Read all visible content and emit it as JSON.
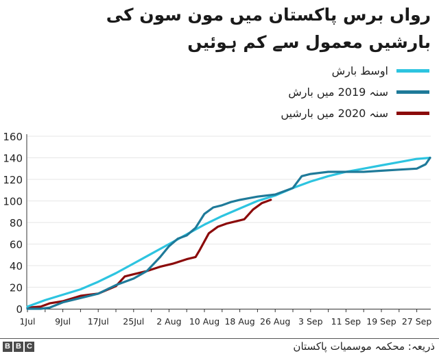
{
  "title": "رواں برس پاکستان میں مون سون کی بارشیں معمول سے کم ہوئیں",
  "legend": [
    {
      "label": "اوسط بارش",
      "color": "#2dc4e0"
    },
    {
      "label": "سنہ 2019 میں بارش",
      "color": "#1f7a99"
    },
    {
      "label": "سنہ 2020 میں بارشیں",
      "color": "#8b0a0a"
    }
  ],
  "footer": {
    "logo_letters": [
      "B",
      "B",
      "C"
    ],
    "source": "ذریعہ: محکمہ موسمیات پاکستان"
  },
  "chart_data": {
    "type": "line",
    "title": "رواں برس پاکستان میں مون سون کی بارشیں معمول سے کم ہوئیں",
    "xlabel": "",
    "ylabel": "",
    "ylim": [
      0,
      160
    ],
    "yticks": [
      0,
      20,
      40,
      60,
      80,
      100,
      120,
      140,
      160
    ],
    "xticks": [
      "1Jul",
      "9Jul",
      "17Jul",
      "25Jul",
      "2 Aug",
      "10 Aug",
      "18 Aug",
      "26 Aug",
      "3 Sep",
      "11 Sep",
      "19 Sep",
      "27 Sep"
    ],
    "xtick_days": [
      0,
      8,
      16,
      24,
      32,
      40,
      48,
      56,
      64,
      72,
      80,
      88
    ],
    "x_unit": "days since 1 Jul",
    "grid": true,
    "legend_position": "top-right",
    "series": [
      {
        "name": "اوسط بارش",
        "color": "#2dc4e0",
        "x": [
          0,
          4,
          8,
          12,
          16,
          20,
          24,
          28,
          32,
          36,
          40,
          44,
          48,
          52,
          56,
          60,
          64,
          68,
          72,
          76,
          80,
          84,
          88,
          91
        ],
        "values": [
          2,
          8,
          13,
          18,
          25,
          33,
          42,
          51,
          60,
          69,
          78,
          86,
          93,
          100,
          105,
          112,
          118,
          123,
          127,
          130,
          133,
          136,
          139,
          140
        ]
      },
      {
        "name": "سنہ 2019 میں بارش",
        "color": "#1f7a99",
        "x": [
          0,
          3,
          5,
          8,
          12,
          16,
          20,
          24,
          27,
          30,
          32,
          34,
          36,
          38,
          40,
          42,
          44,
          46,
          48,
          52,
          56,
          60,
          62,
          64,
          68,
          72,
          76,
          80,
          84,
          88,
          90,
          91
        ],
        "values": [
          0,
          0,
          1,
          6,
          10,
          14,
          22,
          28,
          35,
          48,
          58,
          65,
          68,
          75,
          88,
          94,
          96,
          99,
          101,
          104,
          106,
          112,
          123,
          125,
          127,
          127,
          127,
          128,
          129,
          130,
          134,
          140
        ]
      },
      {
        "name": "سنہ 2020 میں بارشیں",
        "color": "#8b0a0a",
        "x": [
          0,
          3,
          5,
          8,
          12,
          16,
          20,
          22,
          24,
          27,
          30,
          33,
          36,
          38,
          39,
          41,
          43,
          45,
          47,
          49,
          51,
          53,
          55
        ],
        "values": [
          1,
          2,
          5,
          7,
          12,
          14,
          21,
          30,
          32,
          35,
          39,
          42,
          46,
          48,
          55,
          70,
          76,
          79,
          81,
          83,
          92,
          98,
          101
        ]
      }
    ]
  }
}
